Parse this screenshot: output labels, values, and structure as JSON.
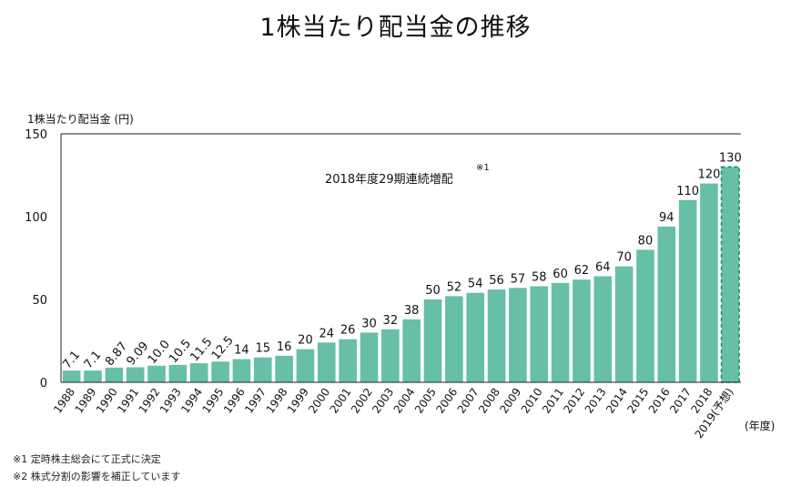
{
  "title": "1株当たり配当金の推移",
  "notes": [
    "※1 定時株主総会にて正式に決定",
    "※2 株式分割の影響を補正しています"
  ],
  "chart_data": {
    "type": "bar",
    "title": "1株当たり配当金の推移",
    "ylabel": "1株当たり配当金 (円)",
    "xlabel": "(年度)",
    "ylim": [
      0,
      150
    ],
    "yticks": [
      0,
      50,
      100,
      150
    ],
    "grid": false,
    "colors": {
      "bar": "#66bfa6",
      "forecast_bar": "#66bfa6",
      "forecast_border": "#1f8a63"
    },
    "categories": [
      "1988",
      "1989",
      "1990",
      "1991",
      "1992",
      "1993",
      "1994",
      "1995",
      "1996",
      "1997",
      "1998",
      "1999",
      "2000",
      "2001",
      "2002",
      "2003",
      "2004",
      "2005",
      "2006",
      "2007",
      "2008",
      "2009",
      "2010",
      "2011",
      "2012",
      "2013",
      "2014",
      "2015",
      "2016",
      "2017",
      "2018",
      "2019(予想)"
    ],
    "values": [
      7.1,
      7.1,
      8.87,
      9.09,
      10.0,
      10.5,
      11.5,
      12.5,
      14,
      15,
      16,
      20,
      24,
      26,
      30,
      32,
      38,
      50,
      52,
      54,
      56,
      57,
      58,
      60,
      62,
      64,
      70,
      80,
      94,
      110,
      120,
      130
    ],
    "data_labels": [
      "7.1",
      "7.1",
      "8.87",
      "9.09",
      "10.0",
      "10.5",
      "11.5",
      "12.5",
      "14",
      "15",
      "16",
      "20",
      "24",
      "26",
      "30",
      "32",
      "38",
      "50",
      "52",
      "54",
      "56",
      "57",
      "58",
      "60",
      "62",
      "64",
      "70",
      "80",
      "94",
      "110",
      "120",
      "130"
    ],
    "forecast_category": "2019(予想)",
    "annotation": {
      "text": "2018年度29期連続増配",
      "mark": "※1"
    }
  }
}
